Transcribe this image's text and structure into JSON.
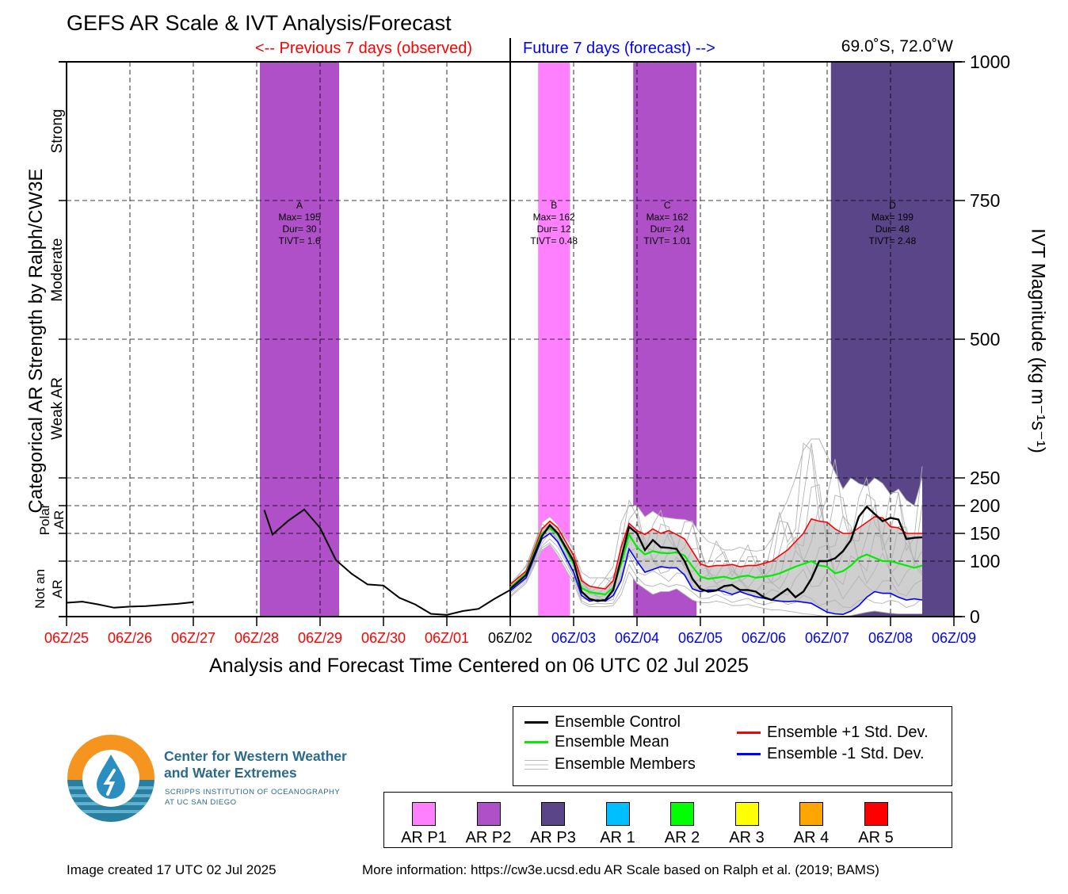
{
  "title": "GEFS AR Scale & IVT Analysis/Forecast",
  "previous_label": "<-- Previous 7 days (observed)",
  "future_label": "Future 7 days (forecast) -->",
  "location": "69.0˚S, 72.0˚W",
  "x_axis_title": "Analysis and Forecast Time Centered on 06 UTC 02 Jul 2025",
  "left_axis_title": "Categorical AR Strength by Ralph/CW3E",
  "right_axis_title": "IVT Magnitude (kg m⁻¹s⁻¹)",
  "left_categories": [
    "Strong",
    "Moderate",
    "Weak AR",
    "Polar AR",
    "Not an AR"
  ],
  "legend": {
    "control": "Ensemble Control",
    "mean": "Ensemble Mean",
    "members": "Ensemble Members",
    "plus_std": "Ensemble +1 Std. Dev.",
    "minus_std": "Ensemble -1 Std. Dev."
  },
  "ar_categories": [
    {
      "label": "AR P1",
      "color": "#ff80ff"
    },
    {
      "label": "AR P2",
      "color": "#b050c8"
    },
    {
      "label": "AR P3",
      "color": "#5a4589"
    },
    {
      "label": "AR 1",
      "color": "#00bfff"
    },
    {
      "label": "AR 2",
      "color": "#00ff00"
    },
    {
      "label": "AR 3",
      "color": "#ffff00"
    },
    {
      "label": "AR 4",
      "color": "#ffa500"
    },
    {
      "label": "AR 5",
      "color": "#ff0000"
    }
  ],
  "logo": {
    "line1": "Center for Western Weather",
    "line2": "and Water Extremes",
    "line3": "SCRIPPS INSTITUTION OF OCEANOGRAPHY",
    "line4": "AT UC SAN DIEGO"
  },
  "footer_left": "Image created 17 UTC 02 Jul 2025",
  "footer_right": "More information: https://cw3e.ucsd.edu AR Scale based on Ralph et al. (2019; BAMS)",
  "colors": {
    "observed": "#ff0000",
    "forecast": "#0000ff",
    "control": "#000000",
    "mean": "#00ee00",
    "plus": "#ff0000",
    "minus": "#0000ff",
    "members": "#b4b4b4"
  },
  "chart_data": {
    "type": "line",
    "x_ticks": [
      "06Z/25",
      "06Z/26",
      "06Z/27",
      "06Z/28",
      "06Z/29",
      "06Z/30",
      "06Z/01",
      "06Z/02",
      "06Z/03",
      "06Z/04",
      "06Z/05",
      "06Z/06",
      "06Z/07",
      "06Z/08",
      "06Z/09"
    ],
    "x_tick_colors": [
      "#ff0000",
      "#ff0000",
      "#ff0000",
      "#ff0000",
      "#ff0000",
      "#ff0000",
      "#ff0000",
      "#000000",
      "#0000ff",
      "#0000ff",
      "#0000ff",
      "#0000ff",
      "#0000ff",
      "#0000ff",
      "#0000ff"
    ],
    "x_range_days": [
      -7,
      7
    ],
    "y_ticks": [
      0,
      100,
      150,
      200,
      250,
      500,
      750,
      1000
    ],
    "y_range": [
      0,
      1000
    ],
    "grid": true,
    "ar_events": [
      {
        "label": "A",
        "max": "Max= 195",
        "dur": "Dur= 30",
        "tivt": "TIVT= 1.6",
        "start": -3.95,
        "end": -2.7,
        "category": "AR P2"
      },
      {
        "label": "B",
        "max": "Max= 162",
        "dur": "Dur= 12",
        "tivt": "TIVT= 0.48",
        "start": 0.44,
        "end": 0.94,
        "category": "AR P1"
      },
      {
        "label": "C",
        "max": "Max= 162",
        "dur": "Dur= 24",
        "tivt": "TIVT= 1.01",
        "start": 1.94,
        "end": 2.94,
        "category": "AR P2"
      },
      {
        "label": "D",
        "max": "Max= 199",
        "dur": "Dur= 48",
        "tivt": "TIVT= 2.48",
        "start": 5.06,
        "end": 7.0,
        "category": "AR P3"
      }
    ],
    "observed_control": {
      "t": [
        -7,
        -6.75,
        -6.5,
        -6.25,
        -6,
        -5.75,
        -5.5,
        -5.25,
        -5,
        -4.75,
        -3.88,
        -3.75,
        -3.5,
        -3.25,
        -3,
        -2.75,
        -2.5,
        -2.25,
        -2,
        -1.75,
        -1.5,
        -1.25,
        -1,
        -0.75,
        -0.5,
        -0.25,
        0
      ],
      "v": [
        25,
        27,
        22,
        16,
        18,
        19,
        21,
        23,
        26,
        null,
        192,
        148,
        173,
        193,
        160,
        102,
        77,
        58,
        56,
        34,
        22,
        5,
        3,
        10,
        14,
        32,
        48
      ]
    },
    "forecast": {
      "t": [
        0,
        0.25,
        0.5,
        0.625,
        0.75,
        1,
        1.125,
        1.25,
        1.375,
        1.5,
        1.625,
        1.75,
        1.875,
        2,
        2.125,
        2.25,
        2.375,
        2.5,
        2.625,
        2.75,
        2.875,
        3,
        3.125,
        3.25,
        3.375,
        3.5,
        3.625,
        3.75,
        3.875,
        4,
        4.125,
        4.25,
        4.375,
        4.5,
        4.625,
        4.75,
        4.875,
        5,
        5.125,
        5.25,
        5.375,
        5.5,
        5.625,
        5.75,
        5.875,
        6,
        6.125,
        6.25,
        6.375,
        6.5,
        6.625,
        6.75,
        6.875,
        7
      ],
      "control": [
        50,
        75,
        145,
        165,
        150,
        100,
        45,
        32,
        28,
        30,
        48,
        105,
        162,
        150,
        120,
        138,
        125,
        124,
        122,
        100,
        68,
        50,
        45,
        47,
        55,
        57,
        48,
        48,
        45,
        35,
        30,
        40,
        50,
        35,
        45,
        68,
        100,
        100,
        105,
        118,
        138,
        180,
        198,
        185,
        172,
        178,
        175,
        140,
        142,
        143,
        null,
        null,
        null,
        null
      ],
      "mean": [
        52,
        78,
        150,
        160,
        148,
        95,
        52,
        44,
        42,
        40,
        52,
        95,
        148,
        125,
        112,
        118,
        115,
        114,
        116,
        110,
        90,
        72,
        68,
        70,
        72,
        68,
        72,
        74,
        70,
        72,
        74,
        78,
        84,
        90,
        95,
        100,
        92,
        90,
        78,
        82,
        92,
        106,
        112,
        106,
        100,
        100,
        96,
        92,
        88,
        92,
        null,
        null,
        null,
        null
      ],
      "plus": [
        58,
        82,
        158,
        172,
        160,
        110,
        65,
        55,
        52,
        50,
        65,
        125,
        168,
        155,
        148,
        158,
        150,
        155,
        148,
        140,
        118,
        95,
        90,
        92,
        92,
        94,
        90,
        92,
        92,
        96,
        100,
        110,
        120,
        135,
        150,
        176,
        172,
        170,
        158,
        150,
        150,
        160,
        170,
        180,
        178,
        162,
        160,
        150,
        150,
        150,
        null,
        null,
        null,
        null
      ],
      "minus": [
        46,
        70,
        140,
        150,
        135,
        80,
        38,
        28,
        30,
        28,
        38,
        65,
        122,
        100,
        80,
        85,
        90,
        88,
        88,
        75,
        50,
        45,
        48,
        48,
        45,
        40,
        45,
        40,
        36,
        33,
        30,
        28,
        27,
        28,
        26,
        24,
        16,
        8,
        5,
        4,
        10,
        20,
        35,
        45,
        42,
        42,
        35,
        30,
        32,
        30,
        null,
        null,
        null,
        null
      ],
      "members_max": [
        60,
        90,
        170,
        180,
        165,
        120,
        80,
        70,
        70,
        70,
        90,
        170,
        200,
        200,
        180,
        190,
        180,
        178,
        176,
        175,
        170,
        150,
        135,
        130,
        120,
        120,
        125,
        120,
        118,
        120,
        140,
        180,
        210,
        250,
        300,
        320,
        320,
        290,
        260,
        230,
        250,
        240,
        235,
        250,
        240,
        220,
        230,
        210,
        200,
        250,
        null,
        null,
        null,
        null
      ],
      "members_min": [
        35,
        60,
        120,
        130,
        110,
        60,
        25,
        18,
        18,
        18,
        20,
        40,
        80,
        60,
        50,
        40,
        45,
        45,
        50,
        40,
        30,
        25,
        25,
        28,
        25,
        20,
        20,
        22,
        18,
        15,
        12,
        12,
        10,
        8,
        5,
        4,
        2,
        0,
        0,
        0,
        2,
        5,
        8,
        10,
        8,
        6,
        5,
        5,
        5,
        5,
        null,
        null,
        null,
        null
      ]
    }
  }
}
